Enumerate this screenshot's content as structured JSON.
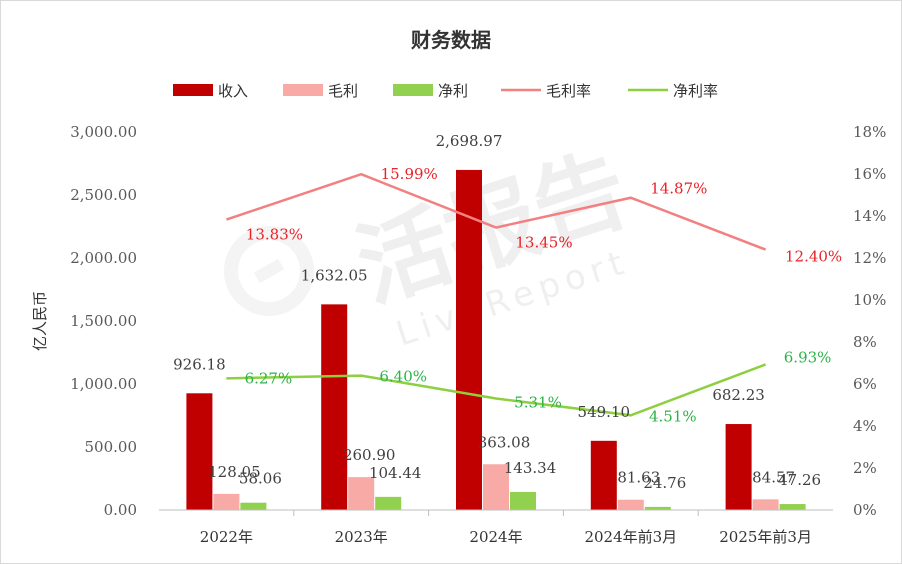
{
  "chart_data": {
    "type": "bar",
    "title": "财务数据",
    "ylabel": "亿人民币",
    "categories": [
      "2022年",
      "2023年",
      "2024年",
      "2024年前3月",
      "2025年前3月"
    ],
    "y_ticks": [
      "0.00",
      "500.00",
      "1,000.00",
      "1,500.00",
      "2,000.00",
      "2,500.00",
      "3,000.00"
    ],
    "y2_ticks": [
      "0%",
      "2%",
      "4%",
      "6%",
      "8%",
      "10%",
      "12%",
      "14%",
      "16%",
      "18%"
    ],
    "ylim": [
      0,
      3000
    ],
    "y2lim": [
      0,
      18
    ],
    "bar_series": [
      {
        "name": "收入",
        "color": "#c00000",
        "values": [
          926.18,
          1632.05,
          2698.97,
          549.1,
          682.23
        ],
        "labels": [
          "926.18",
          "1,632.05",
          "2,698.97",
          "549.10",
          "682.23"
        ]
      },
      {
        "name": "毛利",
        "color": "#f8aaa6",
        "values": [
          128.05,
          260.9,
          363.08,
          81.63,
          84.57
        ],
        "labels": [
          "128.05",
          "260.90",
          "363.08",
          "81.63",
          "84.57"
        ]
      },
      {
        "name": "净利",
        "color": "#92d050",
        "values": [
          58.06,
          104.44,
          143.34,
          24.76,
          47.26
        ],
        "labels": [
          "58.06",
          "104.44",
          "143.34",
          "24.76",
          "47.26"
        ]
      }
    ],
    "line_series": [
      {
        "name": "毛利率",
        "color": "#f28080",
        "label_color": "#e8232a",
        "values": [
          13.83,
          15.99,
          13.45,
          14.87,
          12.4
        ],
        "labels": [
          "13.83%",
          "15.99%",
          "13.45%",
          "14.87%",
          "12.40%"
        ]
      },
      {
        "name": "净利率",
        "color": "#8ccf3f",
        "label_color": "#2db34a",
        "values": [
          6.27,
          6.4,
          5.31,
          4.51,
          6.93
        ],
        "labels": [
          "6.27%",
          "6.40%",
          "5.31%",
          "4.51%",
          "6.93%"
        ]
      }
    ],
    "legend_position": "top",
    "grid": false
  },
  "watermark": {
    "main": "活报告",
    "sub": "LiveReport"
  }
}
